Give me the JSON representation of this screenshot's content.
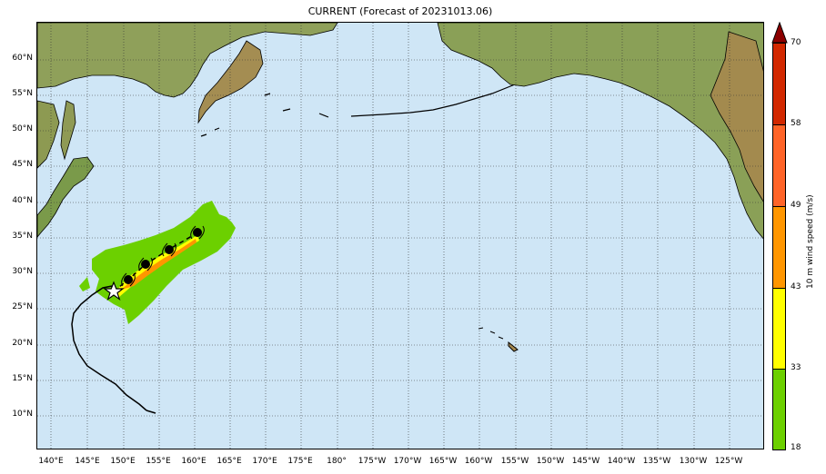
{
  "title": "CURRENT (Forecast of 20231013.06)",
  "map": {
    "lat_labels": [
      "60°N",
      "55°N",
      "50°N",
      "45°N",
      "40°N",
      "35°N",
      "30°N",
      "25°N",
      "20°N",
      "15°N",
      "10°N"
    ],
    "lon_labels": [
      "140°E",
      "145°E",
      "150°E",
      "155°E",
      "160°E",
      "165°E",
      "170°E",
      "175°E",
      "180°",
      "175°W",
      "170°W",
      "165°W",
      "160°W",
      "155°W",
      "150°W",
      "145°W",
      "140°W",
      "135°W",
      "130°W",
      "125°W"
    ],
    "ocean_color": "#cfe6f6",
    "land_color": "#9c8f54",
    "grid_style": "dotted"
  },
  "colorbar": {
    "label": "10 m wind speed (m/s)",
    "ticks": [
      "18",
      "33",
      "43",
      "49",
      "58",
      "70"
    ],
    "colors": [
      "#6cd000",
      "#ffff00",
      "#ff9600",
      "#ff6428",
      "#d22800",
      "#8c0000"
    ],
    "extend": "max"
  },
  "storm": {
    "symbol": "hurricane-symbol",
    "current_marker": "star"
  }
}
